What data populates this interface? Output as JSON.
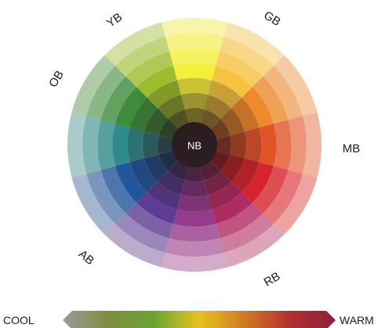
{
  "wheel": {
    "center_label": "NB",
    "center_color": "#2b1d22",
    "rings": 7,
    "segments": [
      {
        "name": "hue-yellow",
        "color": "#f3ef3a"
      },
      {
        "name": "hue-yellow-orange",
        "color": "#f6c340"
      },
      {
        "name": "hue-orange",
        "color": "#ee8a2e"
      },
      {
        "name": "hue-red-orange",
        "color": "#e2532a"
      },
      {
        "name": "hue-red",
        "color": "#d5242b"
      },
      {
        "name": "hue-magenta",
        "color": "#b02b63"
      },
      {
        "name": "hue-purple-red",
        "color": "#953b8c"
      },
      {
        "name": "hue-violet",
        "color": "#5c3c94"
      },
      {
        "name": "hue-blue",
        "color": "#23559a"
      },
      {
        "name": "hue-teal",
        "color": "#2e8a8c"
      },
      {
        "name": "hue-green",
        "color": "#3d8c3c"
      },
      {
        "name": "hue-yellow-green",
        "color": "#9cbd2c"
      }
    ],
    "labels": [
      {
        "text": "YB"
      },
      {
        "text": "GB"
      },
      {
        "text": "MB"
      },
      {
        "text": "RB"
      },
      {
        "text": "AB"
      },
      {
        "text": "OB"
      }
    ]
  },
  "scale": {
    "cool_label": "COOL",
    "warm_label": "WARM",
    "gradient_colors": [
      "#9a9a9a",
      "#7f8c42",
      "#6aa432",
      "#e6c21e",
      "#d07a22",
      "#b23030",
      "#8e1f3c"
    ]
  }
}
